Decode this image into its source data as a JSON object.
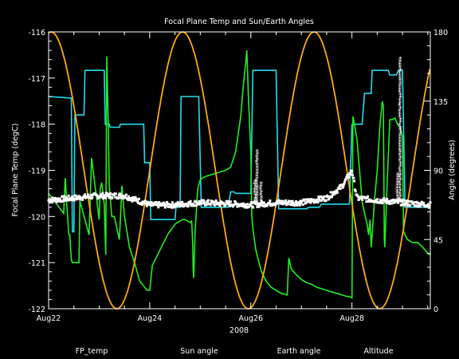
{
  "chart_data": {
    "type": "line",
    "title": "Focal Plane Temp and Sun/Earth Angles",
    "xlabel": "2008",
    "ylabel": "Focal Plane Temp (degC)",
    "y2label": "Angle (degrees)",
    "xlim": [
      22,
      29.55
    ],
    "ylim": [
      -122,
      -116
    ],
    "y2lim": [
      0,
      180
    ],
    "x_tick_labels": [
      "Aug22",
      "Aug24",
      "Aug26",
      "Aug28"
    ],
    "x_tick_values": [
      22,
      24,
      26,
      28
    ],
    "y_tick_labels": [
      "-116",
      "-117",
      "-118",
      "-119",
      "-120",
      "-121",
      "-122"
    ],
    "y_tick_values": [
      -116,
      -117,
      -118,
      -119,
      -120,
      -121,
      -122
    ],
    "y2_tick_labels": [
      "180",
      "135",
      "90",
      "45",
      "0"
    ],
    "y2_tick_values": [
      180,
      135,
      90,
      45,
      0
    ],
    "legend": [
      "FP_temp",
      "Sun angle",
      "Earth angle",
      "Altitude"
    ],
    "legend_placement": "bottom",
    "colors": {
      "background": "#000000",
      "axes": "#ffffff",
      "FP_temp": "#ffffff",
      "Sun angle": "#22ddee",
      "Earth angle": "#22ee22",
      "Altitude": "#ffaa11"
    },
    "series": [
      {
        "name": "Sun angle",
        "axis": "right",
        "points": [
          [
            22.0,
            138
          ],
          [
            22.45,
            137
          ],
          [
            22.47,
            50
          ],
          [
            22.5,
            50
          ],
          [
            22.52,
            126
          ],
          [
            22.7,
            126
          ],
          [
            22.72,
            155
          ],
          [
            23.1,
            155
          ],
          [
            23.12,
            120
          ],
          [
            23.2,
            120
          ],
          [
            23.22,
            118
          ],
          [
            23.4,
            118
          ],
          [
            23.42,
            120
          ],
          [
            23.88,
            120
          ],
          [
            23.9,
            95
          ],
          [
            24.0,
            95
          ],
          [
            24.02,
            58
          ],
          [
            24.5,
            58
          ],
          [
            24.52,
            66
          ],
          [
            24.6,
            66
          ],
          [
            24.62,
            138
          ],
          [
            24.97,
            138
          ],
          [
            25.02,
            66
          ],
          [
            25.55,
            66
          ],
          [
            25.6,
            76
          ],
          [
            25.67,
            76
          ],
          [
            25.7,
            75
          ],
          [
            26.0,
            75
          ],
          [
            26.04,
            155
          ],
          [
            26.5,
            155
          ],
          [
            26.55,
            65
          ],
          [
            27.1,
            65
          ],
          [
            27.15,
            66
          ],
          [
            27.35,
            66
          ],
          [
            27.4,
            68
          ],
          [
            27.95,
            68
          ],
          [
            28.0,
            120
          ],
          [
            28.2,
            120
          ],
          [
            28.25,
            140
          ],
          [
            28.38,
            140
          ],
          [
            28.4,
            155
          ],
          [
            28.72,
            155
          ],
          [
            28.75,
            152
          ],
          [
            28.88,
            152
          ],
          [
            28.92,
            155
          ],
          [
            29.0,
            155
          ],
          [
            29.05,
            66
          ],
          [
            29.55,
            66
          ]
        ]
      },
      {
        "name": "Earth angle",
        "axis": "right",
        "points": [
          [
            22.0,
            75
          ],
          [
            22.3,
            62
          ],
          [
            22.31,
            72
          ],
          [
            22.33,
            85
          ],
          [
            22.36,
            68
          ],
          [
            22.4,
            48
          ],
          [
            22.42,
            48
          ],
          [
            22.45,
            32
          ],
          [
            22.47,
            30
          ],
          [
            22.6,
            30
          ],
          [
            22.62,
            70
          ],
          [
            22.8,
            48
          ],
          [
            22.85,
            98
          ],
          [
            22.9,
            85
          ],
          [
            23.0,
            58
          ],
          [
            23.02,
            78
          ],
          [
            23.05,
            82
          ],
          [
            23.1,
            68
          ],
          [
            23.13,
            35
          ],
          [
            23.15,
            164
          ],
          [
            23.18,
            120
          ],
          [
            23.2,
            80
          ],
          [
            23.25,
            60
          ],
          [
            23.3,
            60
          ],
          [
            23.4,
            45
          ],
          [
            23.43,
            65
          ],
          [
            23.45,
            80
          ],
          [
            23.5,
            60
          ],
          [
            23.6,
            40
          ],
          [
            23.7,
            30
          ],
          [
            23.8,
            18
          ],
          [
            23.9,
            14
          ],
          [
            23.95,
            12
          ],
          [
            24.0,
            12
          ],
          [
            24.05,
            28
          ],
          [
            24.2,
            38
          ],
          [
            24.35,
            48
          ],
          [
            24.5,
            55
          ],
          [
            24.65,
            58
          ],
          [
            24.7,
            58
          ],
          [
            24.8,
            56
          ],
          [
            24.83,
            57
          ],
          [
            24.85,
            43
          ],
          [
            24.86,
            25
          ],
          [
            24.87,
            20
          ],
          [
            24.9,
            52
          ],
          [
            24.95,
            78
          ],
          [
            25.0,
            84
          ],
          [
            25.1,
            86
          ],
          [
            25.2,
            87
          ],
          [
            25.3,
            88
          ],
          [
            25.4,
            89
          ],
          [
            25.5,
            90
          ],
          [
            25.6,
            92
          ],
          [
            25.7,
            102
          ],
          [
            25.8,
            125
          ],
          [
            25.85,
            145
          ],
          [
            25.9,
            160
          ],
          [
            25.92,
            168
          ],
          [
            25.95,
            140
          ],
          [
            26.0,
            100
          ],
          [
            26.02,
            60
          ],
          [
            26.05,
            50
          ],
          [
            26.1,
            38
          ],
          [
            26.2,
            25
          ],
          [
            26.3,
            18
          ],
          [
            26.4,
            14
          ],
          [
            26.5,
            12
          ],
          [
            26.6,
            10
          ],
          [
            26.7,
            9
          ],
          [
            26.72,
            9
          ],
          [
            26.75,
            33
          ],
          [
            26.8,
            26
          ],
          [
            26.9,
            22
          ],
          [
            27.0,
            19
          ],
          [
            27.1,
            17
          ],
          [
            27.2,
            16
          ],
          [
            27.3,
            14
          ],
          [
            27.4,
            13
          ],
          [
            27.5,
            12
          ],
          [
            27.6,
            11
          ],
          [
            27.7,
            10
          ],
          [
            27.8,
            9
          ],
          [
            27.9,
            8
          ],
          [
            27.95,
            8
          ],
          [
            28.0,
            7
          ],
          [
            28.02,
            125
          ],
          [
            28.05,
            120
          ],
          [
            28.1,
            110
          ],
          [
            28.2,
            70
          ],
          [
            28.25,
            62
          ],
          [
            28.28,
            58
          ],
          [
            28.3,
            55
          ],
          [
            28.33,
            48
          ],
          [
            28.36,
            58
          ],
          [
            28.38,
            40
          ],
          [
            28.4,
            48
          ],
          [
            28.45,
            72
          ],
          [
            28.5,
            90
          ],
          [
            28.55,
            118
          ],
          [
            28.6,
            135
          ],
          [
            28.62,
            132
          ],
          [
            28.63,
            95
          ],
          [
            28.64,
            45
          ],
          [
            28.65,
            40
          ],
          [
            28.7,
            85
          ],
          [
            28.75,
            123
          ],
          [
            28.8,
            123
          ],
          [
            28.85,
            124
          ],
          [
            28.9,
            120
          ],
          [
            28.95,
            118
          ],
          [
            29.0,
            112
          ],
          [
            29.02,
            50
          ],
          [
            29.05,
            48
          ],
          [
            29.1,
            45
          ],
          [
            29.15,
            44
          ],
          [
            29.2,
            43
          ],
          [
            29.3,
            43
          ],
          [
            29.4,
            40
          ],
          [
            29.5,
            36
          ],
          [
            29.55,
            35
          ]
        ]
      },
      {
        "name": "Altitude",
        "axis": "right",
        "period_days": 2.6,
        "minima_at": [
          23.35,
          25.95,
          28.55
        ],
        "range": [
          0,
          180
        ]
      },
      {
        "name": "FP_temp",
        "axis": "left",
        "baseline": [
          [
            22.0,
            -119.65
          ],
          [
            22.5,
            -119.6
          ],
          [
            23.0,
            -119.55
          ],
          [
            23.5,
            -119.55
          ],
          [
            24.0,
            -119.75
          ],
          [
            24.5,
            -119.75
          ],
          [
            25.0,
            -119.7
          ],
          [
            25.5,
            -119.72
          ],
          [
            26.0,
            -119.75
          ],
          [
            26.5,
            -119.7
          ],
          [
            27.0,
            -119.7
          ],
          [
            27.5,
            -119.6
          ],
          [
            27.8,
            -119.35
          ],
          [
            28.0,
            -119.0
          ],
          [
            28.1,
            -119.6
          ],
          [
            28.5,
            -119.65
          ],
          [
            29.0,
            -119.7
          ],
          [
            29.55,
            -119.75
          ]
        ],
        "spikes": [
          [
            26.08,
            -119.25
          ],
          [
            26.12,
            -118.6
          ],
          [
            26.2,
            -119.3
          ],
          [
            28.9,
            -119.1
          ],
          [
            28.95,
            -116.6
          ]
        ]
      }
    ]
  }
}
